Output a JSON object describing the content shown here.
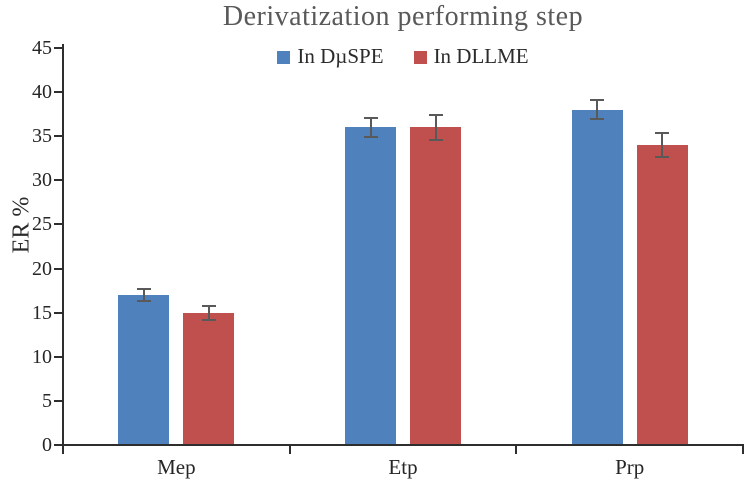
{
  "title": "Derivatization performing step",
  "y_axis_title": "ER %",
  "legend": {
    "items": [
      {
        "label": "In DµSPE",
        "color": "#4F81BD"
      },
      {
        "label": "In DLLME",
        "color": "#C0504D"
      }
    ]
  },
  "chart_data": {
    "type": "bar",
    "title": "Derivatization performing step",
    "categories": [
      "Mep",
      "Etp",
      "Prp"
    ],
    "series": [
      {
        "name": "In DµSPE",
        "color": "#4F81BD",
        "values": [
          17,
          36,
          38
        ],
        "errors": [
          0.7,
          1.1,
          1.1
        ]
      },
      {
        "name": "In DLLME",
        "color": "#C0504D",
        "values": [
          15,
          36,
          34
        ],
        "errors": [
          0.8,
          1.4,
          1.4
        ]
      }
    ],
    "xlabel": "",
    "ylabel": "ER %",
    "ylim": [
      0,
      45
    ],
    "ytick_step": 5,
    "grid": false,
    "legend_position": "top-center",
    "error_bar_color": "#595959",
    "axis_color": "#2e2e2e",
    "title_color": "#595959"
  }
}
